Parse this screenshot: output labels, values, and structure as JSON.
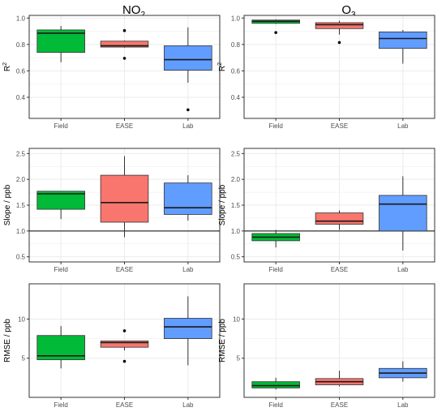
{
  "column_titles": [
    {
      "main": "NO",
      "sub": "2"
    },
    {
      "main": "O",
      "sub": "3"
    }
  ],
  "colors": {
    "Field": "#00ba38",
    "EASE": "#f8766d",
    "Lab": "#619cff",
    "grid": "#ebebeb",
    "border": "#333333"
  },
  "chart_data": [
    {
      "type": "boxplot",
      "panel": "NO2 R2",
      "ylabel": "R",
      "ylabel_sup": "2",
      "categories": [
        "Field",
        "EASE",
        "Lab"
      ],
      "ylim": [
        0.24,
        1.02
      ],
      "yticks": [
        0.4,
        0.6,
        0.8,
        1.0
      ],
      "series": [
        {
          "category": "Field",
          "min": 0.665,
          "q1": 0.74,
          "median": 0.885,
          "q3": 0.91,
          "max": 0.94,
          "outliers": []
        },
        {
          "category": "EASE",
          "min": 0.775,
          "q1": 0.78,
          "median": 0.79,
          "q3": 0.825,
          "max": 0.83,
          "outliers": [
            0.905,
            0.695
          ]
        },
        {
          "category": "Lab",
          "min": 0.51,
          "q1": 0.605,
          "median": 0.685,
          "q3": 0.79,
          "max": 0.93,
          "outliers": [
            0.305
          ]
        }
      ]
    },
    {
      "type": "boxplot",
      "panel": "O3 R2",
      "ylabel": "R",
      "ylabel_sup": "2",
      "categories": [
        "Field",
        "EASE",
        "Lab"
      ],
      "ylim": [
        0.24,
        1.02
      ],
      "yticks": [
        0.4,
        0.6,
        0.8,
        1.0
      ],
      "series": [
        {
          "category": "Field",
          "min": 0.955,
          "q1": 0.96,
          "median": 0.975,
          "q3": 0.985,
          "max": 0.99,
          "outliers": [
            0.89
          ]
        },
        {
          "category": "EASE",
          "min": 0.875,
          "q1": 0.92,
          "median": 0.95,
          "q3": 0.965,
          "max": 0.98,
          "outliers": [
            0.815
          ]
        },
        {
          "category": "Lab",
          "min": 0.655,
          "q1": 0.77,
          "median": 0.845,
          "q3": 0.895,
          "max": 0.91,
          "outliers": []
        }
      ]
    },
    {
      "type": "boxplot",
      "panel": "NO2 Slope",
      "ylabel": "Slope / ppb",
      "hline": 1.0,
      "categories": [
        "Field",
        "EASE",
        "Lab"
      ],
      "ylim": [
        0.4,
        2.6
      ],
      "yticks": [
        0.5,
        1.0,
        1.5,
        2.0,
        2.5
      ],
      "series": [
        {
          "category": "Field",
          "min": 1.23,
          "q1": 1.42,
          "median": 1.72,
          "q3": 1.77,
          "max": 1.77,
          "outliers": []
        },
        {
          "category": "EASE",
          "min": 0.88,
          "q1": 1.17,
          "median": 1.55,
          "q3": 2.08,
          "max": 2.45,
          "outliers": []
        },
        {
          "category": "Lab",
          "min": 1.2,
          "q1": 1.32,
          "median": 1.45,
          "q3": 1.93,
          "max": 2.08,
          "outliers": []
        }
      ]
    },
    {
      "type": "boxplot",
      "panel": "O3 Slope",
      "ylabel": "Slope / ppb",
      "hline": 1.0,
      "categories": [
        "Field",
        "EASE",
        "Lab"
      ],
      "ylim": [
        0.4,
        2.6
      ],
      "yticks": [
        0.5,
        1.0,
        1.5,
        2.0,
        2.5
      ],
      "series": [
        {
          "category": "Field",
          "min": 0.68,
          "q1": 0.81,
          "median": 0.88,
          "q3": 0.95,
          "max": 1.02,
          "outliers": []
        },
        {
          "category": "EASE",
          "min": 1.02,
          "q1": 1.13,
          "median": 1.19,
          "q3": 1.35,
          "max": 1.4,
          "outliers": []
        },
        {
          "category": "Lab",
          "min": 0.62,
          "q1": 1.0,
          "median": 1.52,
          "q3": 1.69,
          "max": 2.06,
          "outliers": []
        }
      ]
    },
    {
      "type": "boxplot",
      "panel": "NO2 RMSE",
      "ylabel": "RMSE / ppb",
      "categories": [
        "Field",
        "EASE",
        "Lab"
      ],
      "ylim": [
        0.0,
        14.5
      ],
      "yticks": [
        5,
        10
      ],
      "series": [
        {
          "category": "Field",
          "min": 3.7,
          "q1": 4.8,
          "median": 5.3,
          "q3": 7.9,
          "max": 9.1,
          "outliers": []
        },
        {
          "category": "EASE",
          "min": 6.0,
          "q1": 6.4,
          "median": 7.0,
          "q3": 7.2,
          "max": 7.2,
          "outliers": [
            8.5,
            4.6
          ]
        },
        {
          "category": "Lab",
          "min": 4.1,
          "q1": 7.5,
          "median": 9.0,
          "q3": 10.1,
          "max": 12.9,
          "outliers": []
        }
      ]
    },
    {
      "type": "boxplot",
      "panel": "O3 RMSE",
      "ylabel": "RMSE / ppb",
      "categories": [
        "Field",
        "EASE",
        "Lab"
      ],
      "ylim": [
        0.0,
        14.5
      ],
      "yticks": [
        5,
        10
      ],
      "series": [
        {
          "category": "Field",
          "min": 1.0,
          "q1": 1.2,
          "median": 1.5,
          "q3": 2.0,
          "max": 2.5,
          "outliers": []
        },
        {
          "category": "EASE",
          "min": 1.4,
          "q1": 1.6,
          "median": 2.0,
          "q3": 2.4,
          "max": 3.4,
          "outliers": []
        },
        {
          "category": "Lab",
          "min": 2.0,
          "q1": 2.5,
          "median": 3.1,
          "q3": 3.7,
          "max": 4.6,
          "outliers": []
        }
      ]
    }
  ]
}
